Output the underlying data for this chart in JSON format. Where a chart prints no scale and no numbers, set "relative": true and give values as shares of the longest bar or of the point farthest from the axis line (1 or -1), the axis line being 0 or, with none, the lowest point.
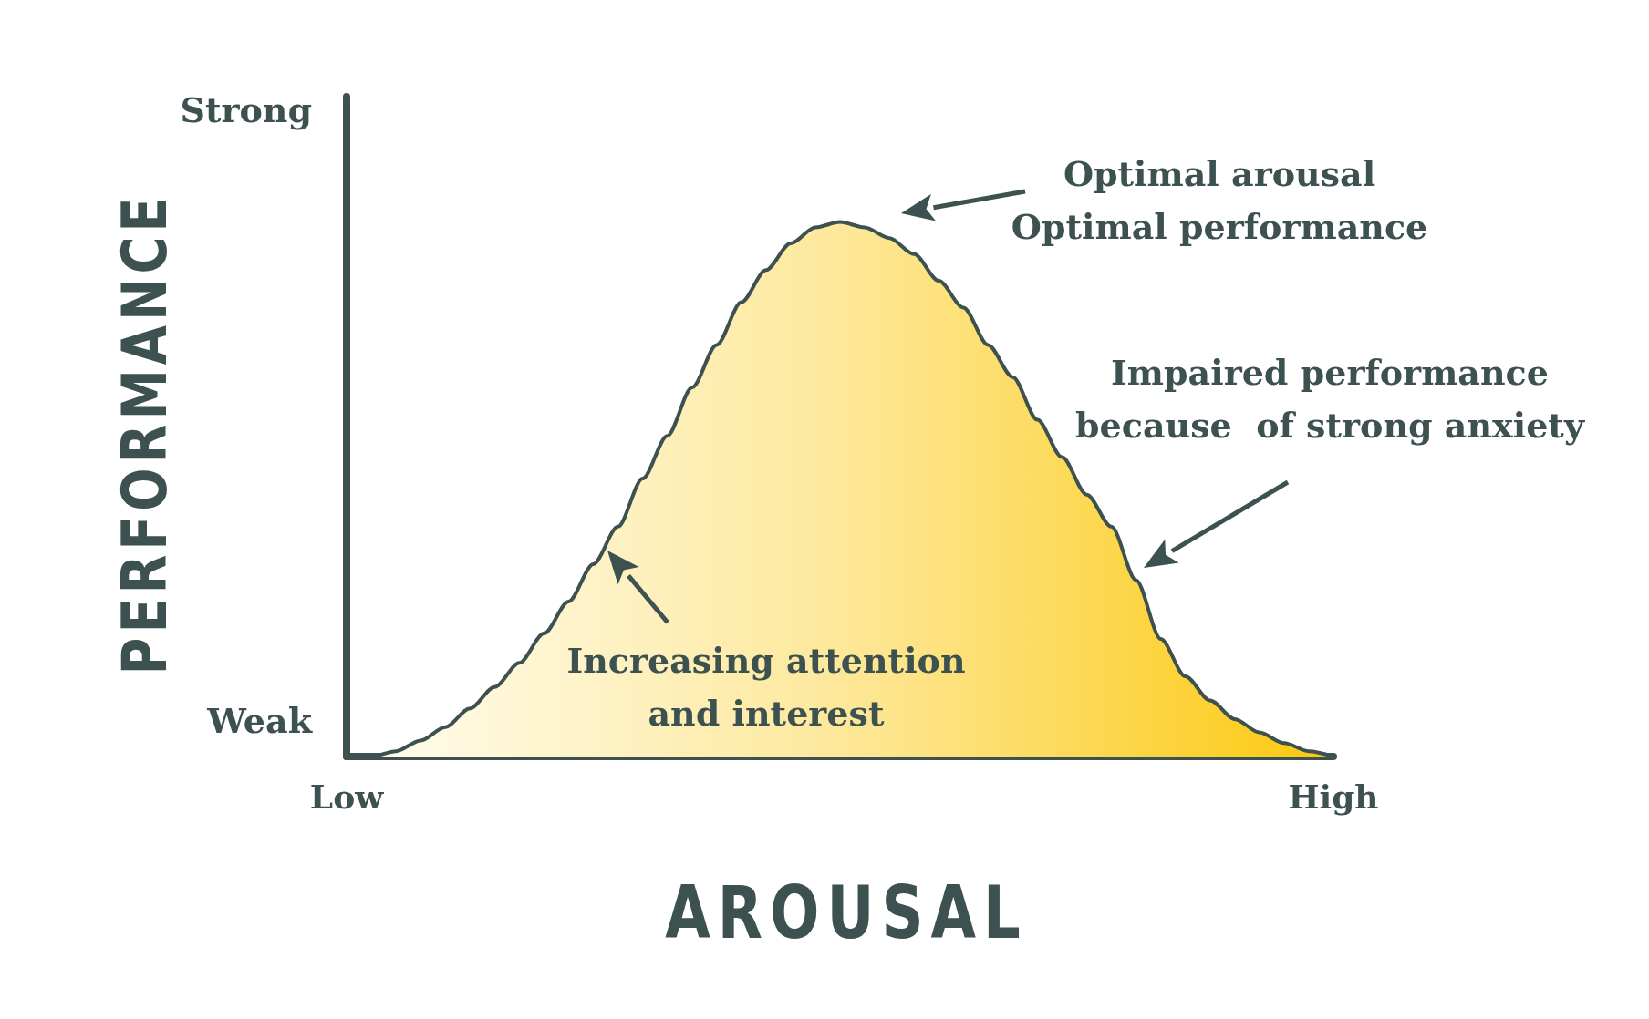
{
  "chart_data": {
    "type": "area",
    "relative": true,
    "xlabel": "AROUSAL",
    "ylabel": "PERFORMANCE",
    "categories": [
      "Low",
      null,
      null,
      null,
      null,
      null,
      null,
      null,
      null,
      null,
      null,
      null,
      null,
      null,
      null,
      null,
      null,
      null,
      null,
      null,
      null,
      null,
      null,
      null,
      null,
      null,
      null,
      null,
      null,
      null,
      null,
      null,
      null,
      null,
      null,
      null,
      null,
      null,
      null,
      null,
      "High"
    ],
    "series": [
      {
        "color": "#3d5250",
        "values": [
          0,
          0,
          0.01,
          0.03,
          0.055,
          0.09,
          0.13,
          0.175,
          0.23,
          0.29,
          0.36,
          0.43,
          0.52,
          0.6,
          0.69,
          0.77,
          0.85,
          0.91,
          0.96,
          0.99,
          1,
          0.99,
          0.97,
          0.94,
          0.89,
          0.84,
          0.77,
          0.71,
          0.63,
          0.56,
          0.49,
          0.43,
          0.33,
          0.22,
          0.15,
          0.105,
          0.07,
          0.045,
          0.025,
          0.01,
          0
        ]
      }
    ],
    "annotations": [
      "Strong",
      "Weak",
      "Optimal arousal\nOptimal performance",
      "Impaired performance\nbecause  of strong anxiety",
      "Increasing attention\nand interest"
    ],
    "grid": false,
    "marker": "none",
    "line_style": "solid"
  }
}
